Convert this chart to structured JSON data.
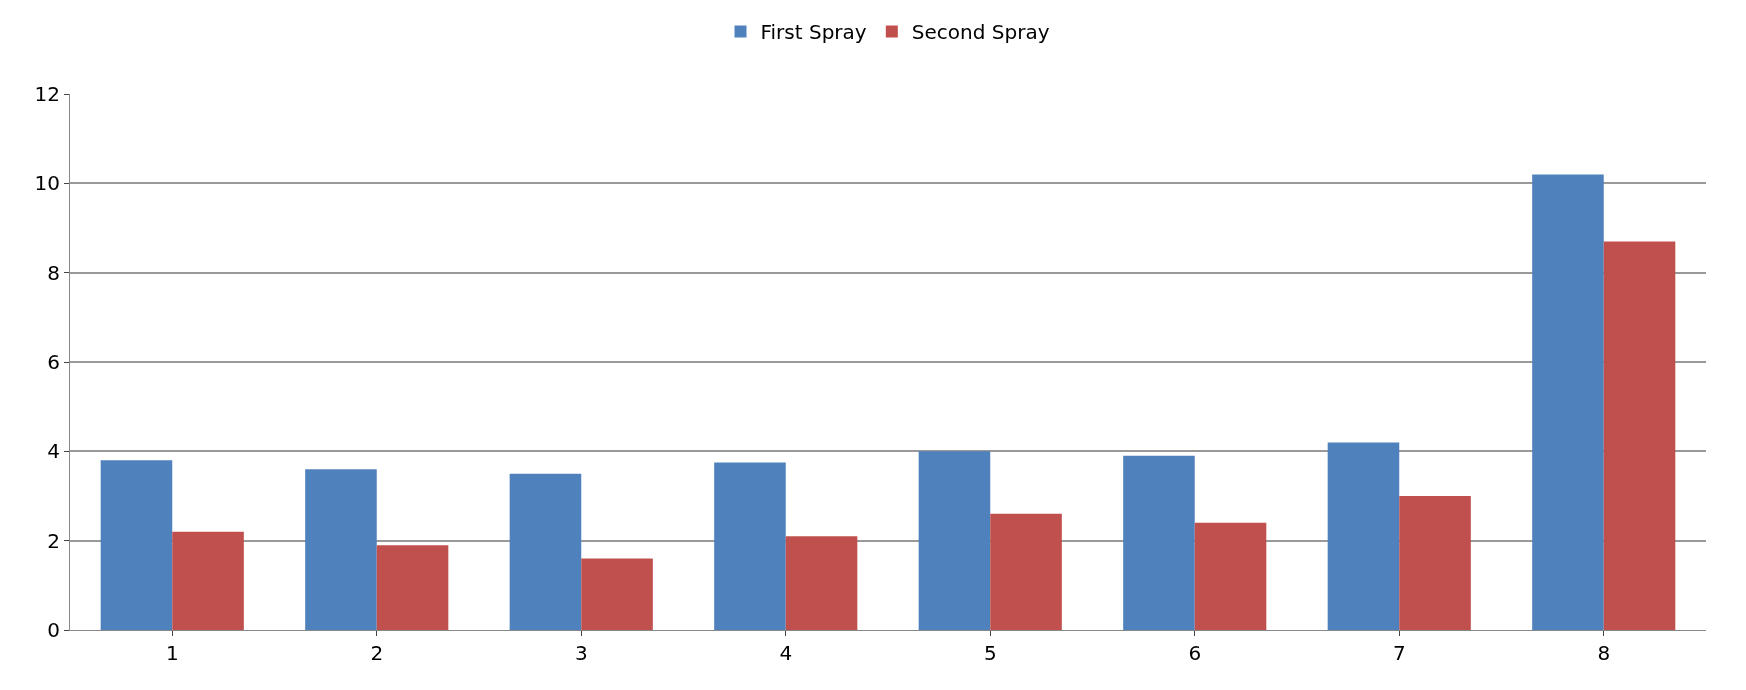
{
  "chart_data": {
    "type": "bar",
    "categories": [
      "1",
      "2",
      "3",
      "4",
      "5",
      "6",
      "7",
      "8"
    ],
    "series": [
      {
        "name": "First Spray",
        "color": "#4f81bd",
        "values": [
          3.8,
          3.6,
          3.5,
          3.75,
          4.0,
          3.9,
          4.2,
          10.2
        ]
      },
      {
        "name": "Second Spray",
        "color": "#c0504d",
        "values": [
          2.2,
          1.9,
          1.6,
          2.1,
          2.6,
          2.4,
          3.0,
          8.7
        ]
      }
    ],
    "ylim": [
      0,
      12
    ],
    "yticks": [
      0,
      2,
      4,
      6,
      8,
      10,
      12
    ],
    "grid": "y",
    "legend": "top"
  }
}
